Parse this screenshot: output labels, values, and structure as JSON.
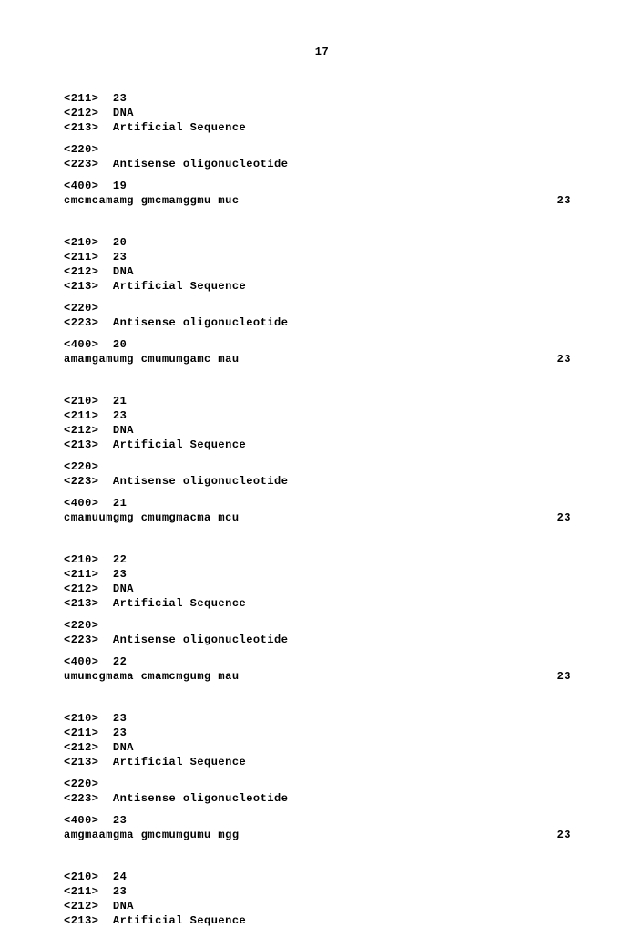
{
  "page_number": "17",
  "entries": [
    {
      "header1": [
        {
          "tag": "<211>",
          "val": "23"
        },
        {
          "tag": "<212>",
          "val": "DNA"
        },
        {
          "tag": "<213>",
          "val": "Artificial Sequence"
        }
      ],
      "header2": [
        {
          "tag": "<220>",
          "val": ""
        },
        {
          "tag": "<223>",
          "val": "Antisense oligonucleotide"
        }
      ],
      "seq_tag": "<400>",
      "seq_id": "19",
      "sequence": "cmcmcamamg gmcmamggmu muc",
      "length": "23"
    },
    {
      "header1": [
        {
          "tag": "<210>",
          "val": "20"
        },
        {
          "tag": "<211>",
          "val": "23"
        },
        {
          "tag": "<212>",
          "val": "DNA"
        },
        {
          "tag": "<213>",
          "val": "Artificial Sequence"
        }
      ],
      "header2": [
        {
          "tag": "<220>",
          "val": ""
        },
        {
          "tag": "<223>",
          "val": "Antisense oligonucleotide"
        }
      ],
      "seq_tag": "<400>",
      "seq_id": "20",
      "sequence": "amamgamumg cmumumgamc mau",
      "length": "23"
    },
    {
      "header1": [
        {
          "tag": "<210>",
          "val": "21"
        },
        {
          "tag": "<211>",
          "val": "23"
        },
        {
          "tag": "<212>",
          "val": "DNA"
        },
        {
          "tag": "<213>",
          "val": "Artificial Sequence"
        }
      ],
      "header2": [
        {
          "tag": "<220>",
          "val": ""
        },
        {
          "tag": "<223>",
          "val": "Antisense oligonucleotide"
        }
      ],
      "seq_tag": "<400>",
      "seq_id": "21",
      "sequence": "cmamuumgmg cmumgmacma mcu",
      "length": "23"
    },
    {
      "header1": [
        {
          "tag": "<210>",
          "val": "22"
        },
        {
          "tag": "<211>",
          "val": "23"
        },
        {
          "tag": "<212>",
          "val": "DNA"
        },
        {
          "tag": "<213>",
          "val": "Artificial Sequence"
        }
      ],
      "header2": [
        {
          "tag": "<220>",
          "val": ""
        },
        {
          "tag": "<223>",
          "val": "Antisense oligonucleotide"
        }
      ],
      "seq_tag": "<400>",
      "seq_id": "22",
      "sequence": "umumcgmama cmamcmgumg mau",
      "length": "23"
    },
    {
      "header1": [
        {
          "tag": "<210>",
          "val": "23"
        },
        {
          "tag": "<211>",
          "val": "23"
        },
        {
          "tag": "<212>",
          "val": "DNA"
        },
        {
          "tag": "<213>",
          "val": "Artificial Sequence"
        }
      ],
      "header2": [
        {
          "tag": "<220>",
          "val": ""
        },
        {
          "tag": "<223>",
          "val": "Antisense oligonucleotide"
        }
      ],
      "seq_tag": "<400>",
      "seq_id": "23",
      "sequence": "amgmaamgma gmcmumgumu mgg",
      "length": "23"
    },
    {
      "header1": [
        {
          "tag": "<210>",
          "val": "24"
        },
        {
          "tag": "<211>",
          "val": "23"
        },
        {
          "tag": "<212>",
          "val": "DNA"
        },
        {
          "tag": "<213>",
          "val": "Artificial Sequence"
        }
      ],
      "header2": null,
      "seq_tag": null,
      "seq_id": null,
      "sequence": null,
      "length": null
    }
  ]
}
